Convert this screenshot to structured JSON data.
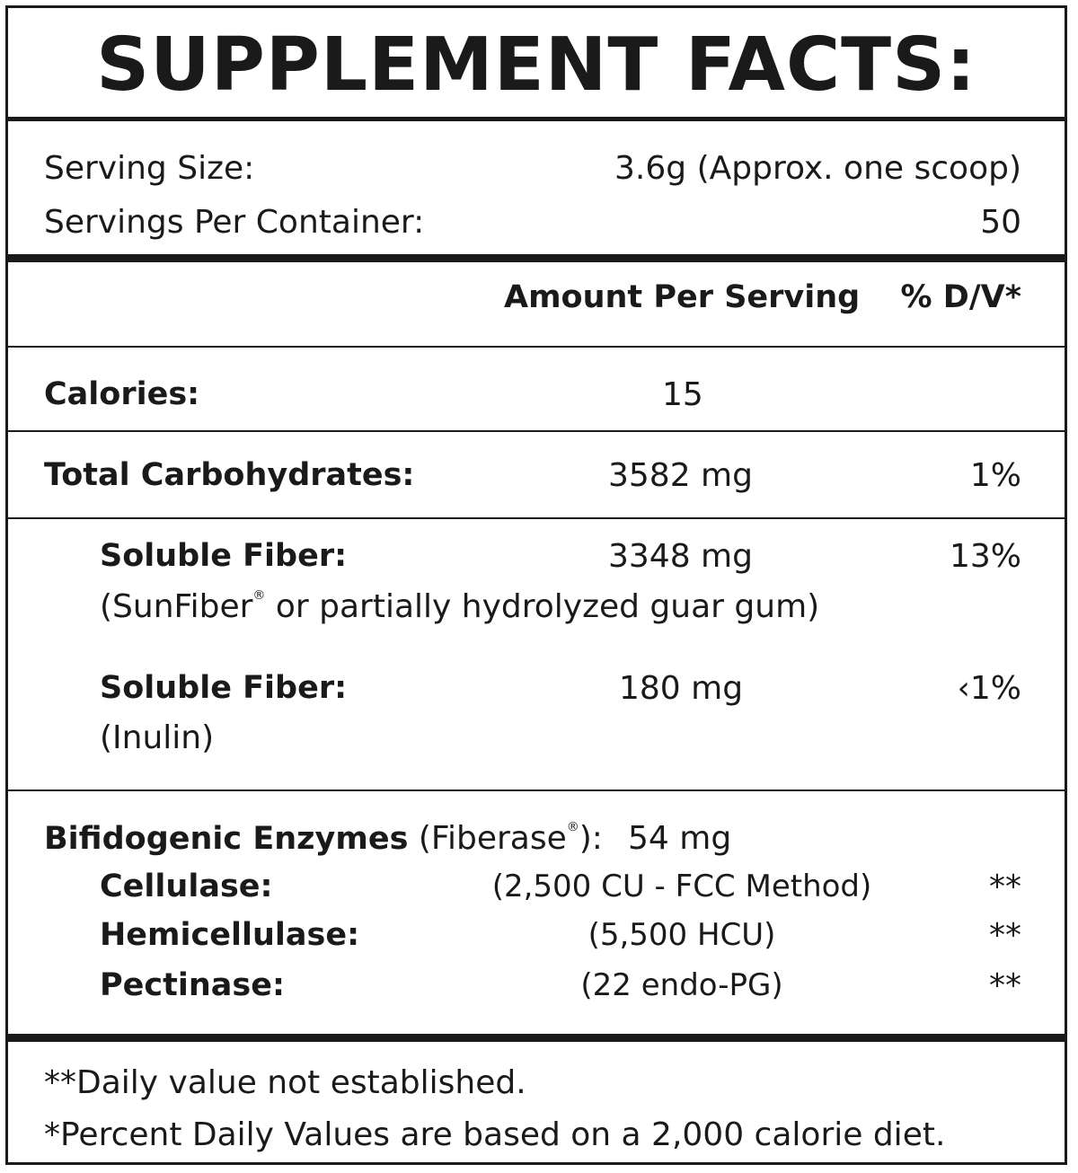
{
  "title": "SUPPLEMENT FACTS:",
  "serving": {
    "size_label": "Serving Size:",
    "size_value": "3.6g (Approx. one scoop)",
    "per_container_label": "Servings Per Container:",
    "per_container_value": "50"
  },
  "header": {
    "amount": "Amount Per Serving",
    "dv": "% D/V*"
  },
  "calories": {
    "label": "Calories:",
    "amount": "15"
  },
  "carbs": {
    "label": "Total Carbohydrates:",
    "amount": "3582 mg",
    "dv": "1%"
  },
  "fiber1": {
    "label": "Soluble Fiber:",
    "amount": "3348 mg",
    "dv": "13%",
    "note_pre": "(SunFiber",
    "note_reg": "®",
    "note_post": " or partially hydrolyzed guar gum)"
  },
  "fiber2": {
    "label": "Soluble Fiber:",
    "amount": "180 mg",
    "dv": "‹1%",
    "note": "(Inulin)"
  },
  "enzymes": {
    "label": "Bifidogenic Enzymes",
    "sub_pre": " (Fiberase",
    "sub_reg": "®",
    "sub_post": "):",
    "amount": "54 mg",
    "items": [
      {
        "label": "Cellulase:",
        "amount": "(2,500 CU - FCC Method)",
        "dv": "**"
      },
      {
        "label": "Hemicellulase:",
        "amount": "(5,500 HCU)",
        "dv": "**"
      },
      {
        "label": "Pectinase:",
        "amount": "(22 endo-PG)",
        "dv": "**"
      }
    ]
  },
  "footnotes": {
    "line1": "**Daily value not established.",
    "line2": "*Percent Daily Values are based on a 2,000 calorie diet."
  }
}
